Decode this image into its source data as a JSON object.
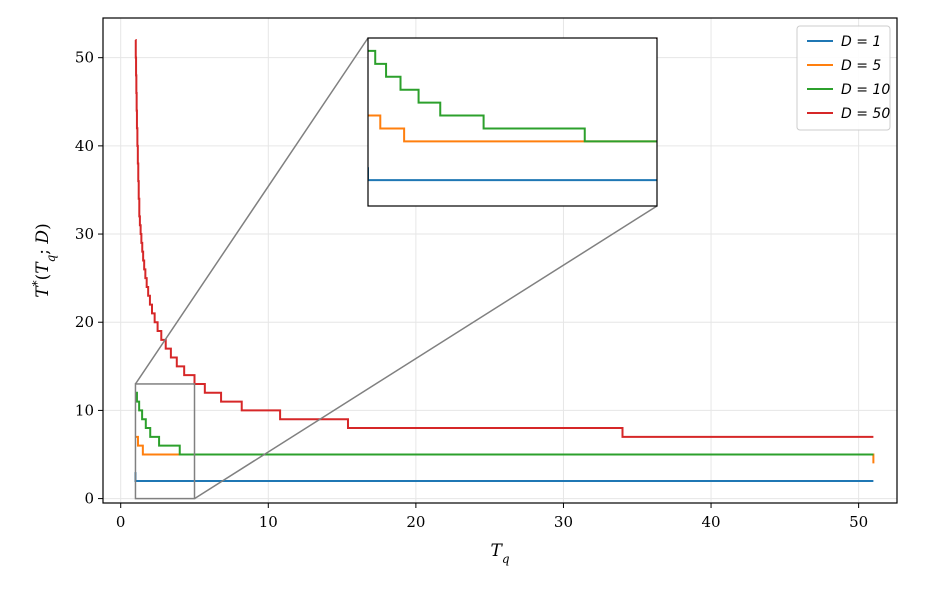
{
  "chart_data": {
    "type": "line",
    "step": true,
    "xlabel": "T_q",
    "ylabel": "T*(T_q; D)",
    "xlim": [
      -1.2,
      52.6
    ],
    "ylim": [
      -0.5,
      54.5
    ],
    "xticks": [
      0,
      10,
      20,
      30,
      40,
      50
    ],
    "yticks": [
      0,
      10,
      20,
      30,
      40,
      50
    ],
    "grid": true,
    "legend_position": "top-right",
    "series": [
      {
        "name": "D = 1",
        "color": "#1f77b4",
        "x": [
          1,
          1,
          51
        ],
        "y": [
          3,
          2,
          2
        ]
      },
      {
        "name": "D = 5",
        "color": "#ff7f0e",
        "x": [
          1,
          1.17,
          1.5,
          51
        ],
        "y": [
          7,
          6,
          5,
          4
        ]
      },
      {
        "name": "D = 10",
        "color": "#2ca02c",
        "x": [
          1,
          1.1,
          1.25,
          1.45,
          1.7,
          2.0,
          2.6,
          4.0,
          51
        ],
        "y": [
          12,
          11,
          10,
          9,
          8,
          7,
          6,
          5,
          5
        ]
      },
      {
        "name": "D = 50",
        "color": "#d62728",
        "x": [
          1,
          1.02,
          1.04,
          1.06,
          1.08,
          1.1,
          1.13,
          1.16,
          1.19,
          1.22,
          1.26,
          1.3,
          1.35,
          1.4,
          1.46,
          1.52,
          1.59,
          1.67,
          1.76,
          1.86,
          1.98,
          2.12,
          2.3,
          2.5,
          2.75,
          3.05,
          3.4,
          3.8,
          4.3,
          5.0,
          5.7,
          6.8,
          8.2,
          10.8,
          15.4,
          34.0,
          51
        ],
        "y": [
          52,
          50,
          48,
          46,
          44,
          42,
          40,
          38,
          36,
          34,
          32,
          31,
          30,
          29,
          28,
          27,
          26,
          25,
          24,
          23,
          22,
          21,
          20,
          19,
          18,
          17,
          16,
          15,
          14,
          13,
          12,
          11,
          10,
          9,
          8,
          7,
          7
        ]
      }
    ],
    "zoom_region": {
      "xlim": [
        1,
        5
      ],
      "ylim": [
        0,
        13
      ]
    }
  }
}
